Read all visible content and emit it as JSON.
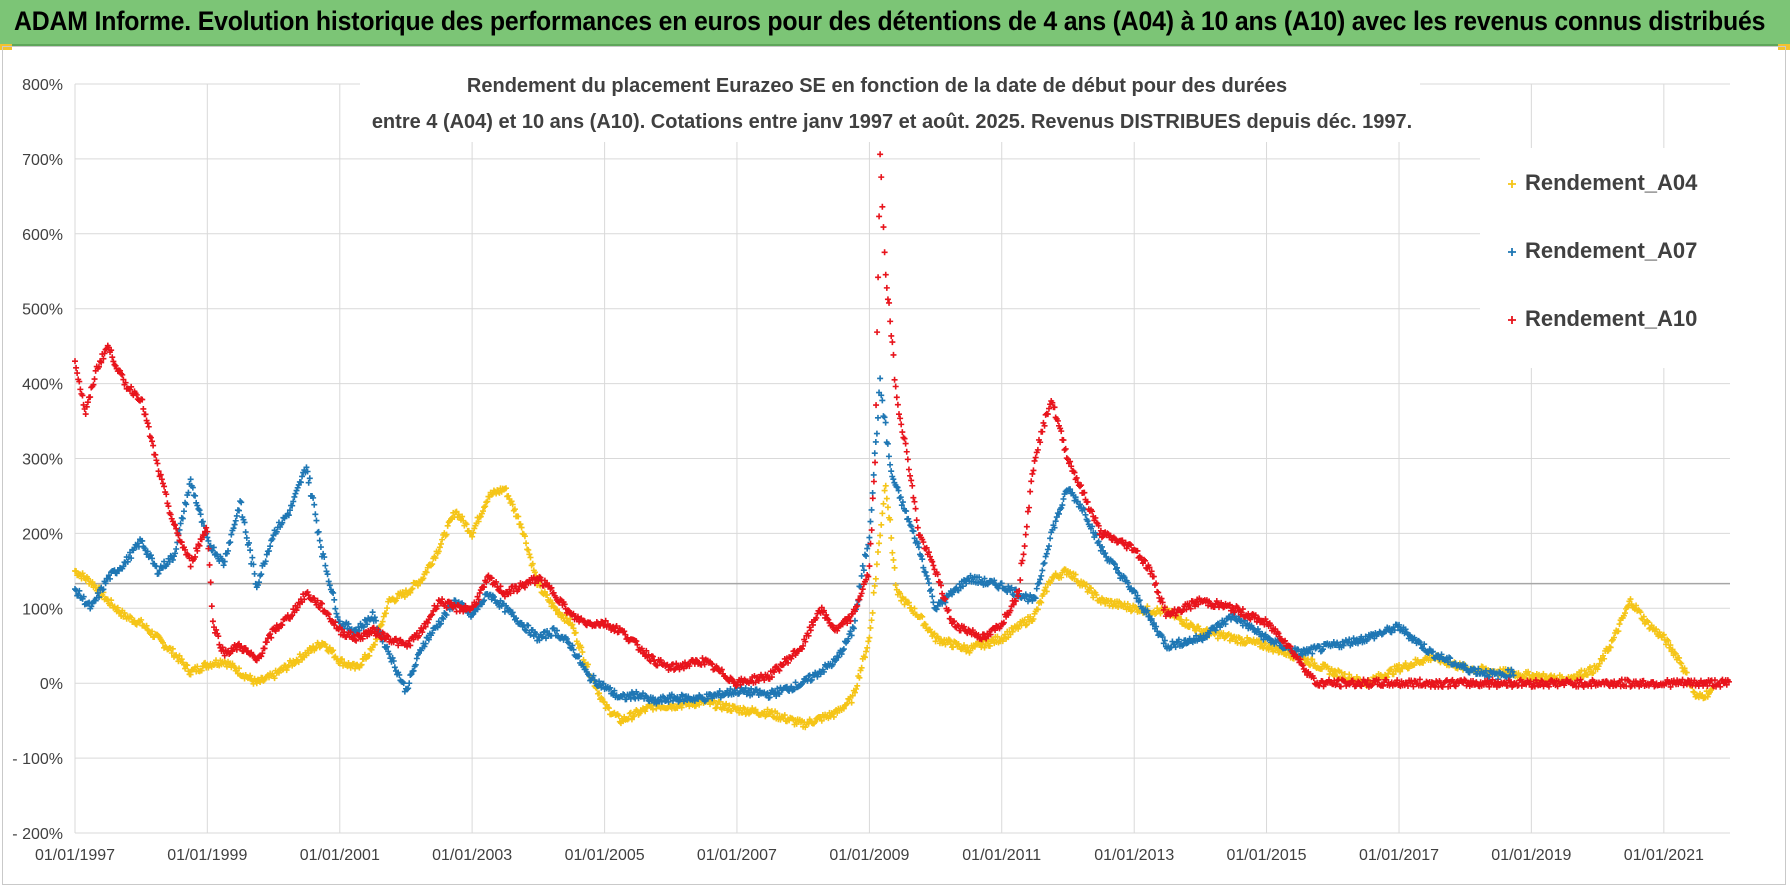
{
  "header": {
    "title": "ADAM Informe. Evolution historique des performances en euros pour des détentions de 4 ans (A04) à 10 ans (A10) avec les revenus connus distribués",
    "bg_color": "#7cc576"
  },
  "chart_data": {
    "type": "scatter",
    "title_line1": "Rendement du placement Eurazeo SE en fonction de la date de début pour des durées",
    "title_line2": "entre 4 (A04) et 10 ans (A10). Cotations entre janv 1997 et août. 2025. Revenus DISTRIBUES depuis déc. 1997.",
    "xlabel": "",
    "ylabel": "",
    "x_ticks": [
      "01/01/1997",
      "01/01/1999",
      "01/01/2001",
      "01/01/2003",
      "01/01/2005",
      "01/01/2007",
      "01/01/2009",
      "01/01/2011",
      "01/01/2013",
      "01/01/2015",
      "01/01/2017",
      "01/01/2019",
      "01/01/2021"
    ],
    "y_ticks": [
      "800%",
      "700%",
      "600%",
      "500%",
      "400%",
      "300%",
      "200%",
      "100%",
      "0%",
      "- 100%",
      "- 200%"
    ],
    "ylim": [
      -200,
      800
    ],
    "xlim": [
      "1997-01-01",
      "2022-01-01"
    ],
    "grid": true,
    "reference_line_y": 133,
    "legend_position": "top-right",
    "marker": "+",
    "series": [
      {
        "name": "Rendement_A04",
        "color": "#f5c518",
        "points": [
          [
            "1997-01-01",
            150
          ],
          [
            "1997-04-01",
            135
          ],
          [
            "1997-07-01",
            110
          ],
          [
            "1997-10-01",
            90
          ],
          [
            "1998-01-01",
            80
          ],
          [
            "1998-04-01",
            60
          ],
          [
            "1998-07-01",
            40
          ],
          [
            "1998-10-01",
            15
          ],
          [
            "1999-01-01",
            25
          ],
          [
            "1999-04-01",
            30
          ],
          [
            "1999-07-01",
            15
          ],
          [
            "1999-10-01",
            0
          ],
          [
            "2000-01-01",
            10
          ],
          [
            "2000-04-01",
            25
          ],
          [
            "2000-07-01",
            40
          ],
          [
            "2000-10-01",
            55
          ],
          [
            "2001-01-01",
            30
          ],
          [
            "2001-04-01",
            20
          ],
          [
            "2001-07-01",
            45
          ],
          [
            "2001-10-01",
            110
          ],
          [
            "2002-01-01",
            120
          ],
          [
            "2002-04-01",
            140
          ],
          [
            "2002-07-01",
            180
          ],
          [
            "2002-10-01",
            230
          ],
          [
            "2003-01-01",
            200
          ],
          [
            "2003-04-01",
            250
          ],
          [
            "2003-07-01",
            260
          ],
          [
            "2003-10-01",
            210
          ],
          [
            "2004-01-01",
            130
          ],
          [
            "2004-04-01",
            100
          ],
          [
            "2004-07-01",
            80
          ],
          [
            "2004-10-01",
            20
          ],
          [
            "2005-01-01",
            -30
          ],
          [
            "2005-04-01",
            -50
          ],
          [
            "2005-07-01",
            -40
          ],
          [
            "2005-10-01",
            -30
          ],
          [
            "2006-01-01",
            -30
          ],
          [
            "2006-07-01",
            -25
          ],
          [
            "2007-01-01",
            -35
          ],
          [
            "2007-07-01",
            -40
          ],
          [
            "2008-01-01",
            -55
          ],
          [
            "2008-07-01",
            -40
          ],
          [
            "2008-10-01",
            -20
          ],
          [
            "2009-01-01",
            60
          ],
          [
            "2009-03-01",
            200
          ],
          [
            "2009-04-01",
            270
          ],
          [
            "2009-06-01",
            120
          ],
          [
            "2009-10-01",
            90
          ],
          [
            "2010-01-01",
            60
          ],
          [
            "2010-07-01",
            45
          ],
          [
            "2011-01-01",
            60
          ],
          [
            "2011-07-01",
            90
          ],
          [
            "2011-10-01",
            140
          ],
          [
            "2012-01-01",
            150
          ],
          [
            "2012-04-01",
            130
          ],
          [
            "2012-07-01",
            110
          ],
          [
            "2013-01-01",
            100
          ],
          [
            "2013-07-01",
            95
          ],
          [
            "2014-01-01",
            70
          ],
          [
            "2014-07-01",
            60
          ],
          [
            "2015-01-01",
            50
          ],
          [
            "2015-07-01",
            35
          ],
          [
            "2016-01-01",
            15
          ],
          [
            "2016-07-01",
            0
          ],
          [
            "2017-01-01",
            20
          ],
          [
            "2017-07-01",
            35
          ],
          [
            "2018-01-01",
            20
          ],
          [
            "2018-07-01",
            15
          ],
          [
            "2019-01-01",
            10
          ],
          [
            "2019-07-01",
            5
          ],
          [
            "2020-01-01",
            20
          ],
          [
            "2020-04-01",
            60
          ],
          [
            "2020-07-01",
            110
          ],
          [
            "2020-10-01",
            80
          ],
          [
            "2021-01-01",
            60
          ],
          [
            "2021-04-01",
            30
          ],
          [
            "2021-07-01",
            -20
          ],
          [
            "2021-10-01",
            -10
          ]
        ]
      },
      {
        "name": "Rendement_A07",
        "color": "#1f77b4",
        "points": [
          [
            "1997-01-01",
            125
          ],
          [
            "1997-04-01",
            100
          ],
          [
            "1997-07-01",
            140
          ],
          [
            "1997-10-01",
            160
          ],
          [
            "1998-01-01",
            190
          ],
          [
            "1998-04-01",
            150
          ],
          [
            "1998-07-01",
            170
          ],
          [
            "1998-10-01",
            270
          ],
          [
            "1999-01-01",
            190
          ],
          [
            "1999-04-01",
            160
          ],
          [
            "1999-07-01",
            240
          ],
          [
            "1999-10-01",
            130
          ],
          [
            "2000-01-01",
            200
          ],
          [
            "2000-04-01",
            230
          ],
          [
            "2000-07-01",
            290
          ],
          [
            "2000-10-01",
            170
          ],
          [
            "2001-01-01",
            80
          ],
          [
            "2001-04-01",
            70
          ],
          [
            "2001-07-01",
            90
          ],
          [
            "2001-10-01",
            40
          ],
          [
            "2002-01-01",
            -10
          ],
          [
            "2002-04-01",
            50
          ],
          [
            "2002-07-01",
            80
          ],
          [
            "2002-10-01",
            110
          ],
          [
            "2003-01-01",
            90
          ],
          [
            "2003-04-01",
            120
          ],
          [
            "2003-07-01",
            100
          ],
          [
            "2003-10-01",
            80
          ],
          [
            "2004-01-01",
            60
          ],
          [
            "2004-04-01",
            70
          ],
          [
            "2004-07-01",
            50
          ],
          [
            "2004-10-01",
            10
          ],
          [
            "2005-01-01",
            -5
          ],
          [
            "2005-04-01",
            -20
          ],
          [
            "2005-07-01",
            -15
          ],
          [
            "2005-10-01",
            -25
          ],
          [
            "2006-01-01",
            -20
          ],
          [
            "2006-07-01",
            -20
          ],
          [
            "2007-01-01",
            -10
          ],
          [
            "2007-07-01",
            -15
          ],
          [
            "2008-01-01",
            0
          ],
          [
            "2008-07-01",
            30
          ],
          [
            "2008-10-01",
            70
          ],
          [
            "2009-01-01",
            200
          ],
          [
            "2009-03-01",
            400
          ],
          [
            "2009-05-01",
            280
          ],
          [
            "2009-10-01",
            180
          ],
          [
            "2010-01-01",
            100
          ],
          [
            "2010-07-01",
            140
          ],
          [
            "2011-01-01",
            130
          ],
          [
            "2011-07-01",
            110
          ],
          [
            "2011-10-01",
            200
          ],
          [
            "2012-01-01",
            260
          ],
          [
            "2012-04-01",
            230
          ],
          [
            "2012-07-01",
            180
          ],
          [
            "2013-01-01",
            120
          ],
          [
            "2013-07-01",
            50
          ],
          [
            "2014-01-01",
            60
          ],
          [
            "2014-07-01",
            90
          ],
          [
            "2015-01-01",
            60
          ],
          [
            "2015-07-01",
            40
          ],
          [
            "2016-01-01",
            50
          ],
          [
            "2016-07-01",
            60
          ],
          [
            "2017-01-01",
            75
          ],
          [
            "2017-07-01",
            40
          ],
          [
            "2018-01-01",
            20
          ],
          [
            "2018-07-01",
            10
          ],
          [
            "2018-10-01",
            15
          ]
        ]
      },
      {
        "name": "Rendement_A10",
        "color": "#e8141c",
        "points": [
          [
            "1997-01-01",
            430
          ],
          [
            "1997-03-01",
            360
          ],
          [
            "1997-05-01",
            420
          ],
          [
            "1997-07-01",
            450
          ],
          [
            "1997-10-01",
            400
          ],
          [
            "1998-01-01",
            380
          ],
          [
            "1998-04-01",
            290
          ],
          [
            "1998-07-01",
            210
          ],
          [
            "1998-10-01",
            160
          ],
          [
            "1999-01-01",
            210
          ],
          [
            "1999-02-01",
            80
          ],
          [
            "1999-04-01",
            40
          ],
          [
            "1999-07-01",
            50
          ],
          [
            "1999-10-01",
            30
          ],
          [
            "2000-01-01",
            70
          ],
          [
            "2000-04-01",
            90
          ],
          [
            "2000-07-01",
            120
          ],
          [
            "2000-10-01",
            100
          ],
          [
            "2001-01-01",
            70
          ],
          [
            "2001-04-01",
            60
          ],
          [
            "2001-07-01",
            70
          ],
          [
            "2001-10-01",
            60
          ],
          [
            "2002-01-01",
            50
          ],
          [
            "2002-04-01",
            70
          ],
          [
            "2002-07-01",
            110
          ],
          [
            "2002-10-01",
            100
          ],
          [
            "2003-01-01",
            100
          ],
          [
            "2003-04-01",
            140
          ],
          [
            "2003-07-01",
            120
          ],
          [
            "2003-10-01",
            130
          ],
          [
            "2004-01-01",
            140
          ],
          [
            "2004-04-01",
            120
          ],
          [
            "2004-07-01",
            90
          ],
          [
            "2004-10-01",
            80
          ],
          [
            "2005-01-01",
            80
          ],
          [
            "2005-04-01",
            70
          ],
          [
            "2005-07-01",
            50
          ],
          [
            "2005-10-01",
            30
          ],
          [
            "2006-01-01",
            20
          ],
          [
            "2006-07-01",
            30
          ],
          [
            "2007-01-01",
            0
          ],
          [
            "2007-07-01",
            10
          ],
          [
            "2008-01-01",
            50
          ],
          [
            "2008-04-01",
            100
          ],
          [
            "2008-07-01",
            70
          ],
          [
            "2008-10-01",
            90
          ],
          [
            "2009-01-01",
            150
          ],
          [
            "2009-02-01",
            300
          ],
          [
            "2009-03-01",
            700
          ],
          [
            "2009-04-01",
            550
          ],
          [
            "2009-06-01",
            380
          ],
          [
            "2009-08-01",
            300
          ],
          [
            "2009-10-01",
            200
          ],
          [
            "2010-01-01",
            150
          ],
          [
            "2010-04-01",
            80
          ],
          [
            "2010-07-01",
            70
          ],
          [
            "2010-10-01",
            60
          ],
          [
            "2011-01-01",
            80
          ],
          [
            "2011-04-01",
            120
          ],
          [
            "2011-07-01",
            300
          ],
          [
            "2011-10-01",
            380
          ],
          [
            "2012-01-01",
            300
          ],
          [
            "2012-04-01",
            250
          ],
          [
            "2012-07-01",
            200
          ],
          [
            "2013-01-01",
            180
          ],
          [
            "2013-04-01",
            150
          ],
          [
            "2013-07-01",
            90
          ],
          [
            "2014-01-01",
            110
          ],
          [
            "2014-07-01",
            100
          ],
          [
            "2015-01-01",
            80
          ],
          [
            "2015-04-01",
            60
          ],
          [
            "2015-07-01",
            30
          ],
          [
            "2015-10-01",
            0
          ],
          [
            "2016-07-01",
            0
          ],
          [
            "2017-07-01",
            0
          ],
          [
            "2018-07-01",
            0
          ],
          [
            "2019-07-01",
            0
          ],
          [
            "2020-07-01",
            0
          ],
          [
            "2021-07-01",
            0
          ],
          [
            "2022-01-01",
            0
          ]
        ]
      }
    ]
  }
}
